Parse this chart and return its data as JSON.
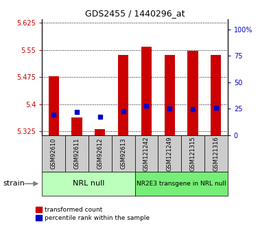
{
  "title": "GDS2455 / 1440296_at",
  "samples": [
    "GSM92610",
    "GSM92611",
    "GSM92612",
    "GSM92613",
    "GSM121242",
    "GSM121249",
    "GSM121315",
    "GSM121316"
  ],
  "red_values": [
    5.478,
    5.363,
    5.332,
    5.535,
    5.558,
    5.535,
    5.548,
    5.535
  ],
  "blue_values": [
    5.372,
    5.378,
    5.365,
    5.38,
    5.395,
    5.388,
    5.386,
    5.39
  ],
  "ylim_left": [
    5.315,
    5.635
  ],
  "yticks_left": [
    5.325,
    5.4,
    5.475,
    5.55,
    5.625
  ],
  "ytick_labels_left": [
    "5.325",
    "5.4",
    "5.475",
    "5.55",
    "5.625"
  ],
  "ylim_right": [
    0,
    110
  ],
  "yticks_right": [
    0,
    25,
    50,
    75,
    100
  ],
  "ytick_labels_right": [
    "0",
    "25",
    "50",
    "75",
    "100%"
  ],
  "group1_label": "NRL null",
  "group1_samples": [
    0,
    1,
    2,
    3
  ],
  "group1_color": "#bbffbb",
  "group2_label": "NR2E3 transgene in NRL null",
  "group2_samples": [
    4,
    5,
    6,
    7
  ],
  "group2_color": "#77ee77",
  "bar_bottom": 5.315,
  "bar_color": "#cc0000",
  "blue_color": "#0000cc",
  "bar_width": 0.45,
  "blue_marker_size": 5,
  "grid_color": "black",
  "bg_color": "white",
  "sample_bg": "#cccccc",
  "legend_red_label": "transformed count",
  "legend_blue_label": "percentile rank within the sample",
  "strain_label": "strain",
  "axis_color_left": "#cc0000",
  "axis_color_right": "#0000cc",
  "tick_fontsize": 7,
  "sample_fontsize": 6,
  "title_fontsize": 9
}
